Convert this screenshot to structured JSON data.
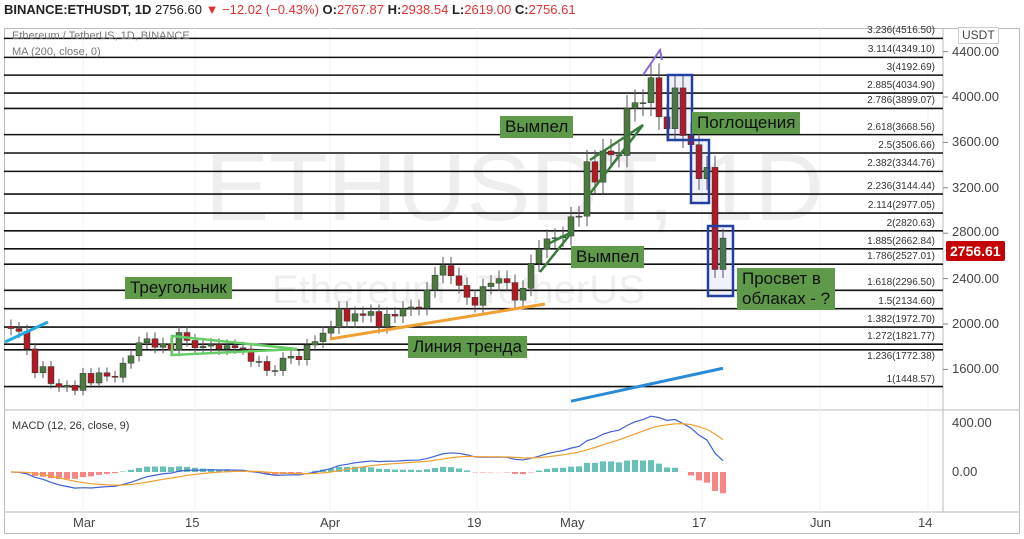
{
  "header": {
    "symbol": "BINANCE:ETHUSDT, 1D",
    "last": "2756.60",
    "change": "▼ −12.02 (−0.43%)",
    "o_label": "O:",
    "o": "2767.87",
    "h_label": "H:",
    "h": "2938.54",
    "l_label": "L:",
    "l": "2619.00",
    "c_label": "C:",
    "c": "2756.61"
  },
  "legend": {
    "title": "Ethereum / TetherUS, 1D, BINANCE",
    "ma": "MA (200, close, 0)",
    "macd": "MACD (12, 26, close, 9)"
  },
  "watermark": {
    "symbol": "ETHUSDT, 1D",
    "name": "Ethereum / TetherUS"
  },
  "price_axis": {
    "currency": "USDT",
    "ticks": [
      "4400.00",
      "4000.00",
      "3600.00",
      "3200.00",
      "2800.00",
      "2400.00",
      "2000.00",
      "1600.00"
    ],
    "last_price": "2756.61",
    "last_color": "#c40000"
  },
  "macd_axis": {
    "ticks": [
      "400.00",
      "0.00"
    ]
  },
  "time_axis": {
    "ticks": [
      "Mar",
      "15",
      "Apr",
      "19",
      "May",
      "17",
      "Jun",
      "14"
    ]
  },
  "fib_levels": [
    "3.236(4516.50)",
    "3.114(4349.10)",
    "3(4192.69)",
    "2.885(4034.90)",
    "2.786(3899.07)",
    "2.618(3668.56)",
    "2.5(3506.66)",
    "2.382(3344.76)",
    "2.236(3144.44)",
    "2.114(2977.05)",
    "2(2820.63)",
    "1.885(2662.84)",
    "1.786(2527.01)",
    "1.618(2296.50)",
    "1.5(2134.60)",
    "1.382(1972.70)",
    "1.272(1821.77)",
    "1.236(1772.38)",
    "1(1448.57)"
  ],
  "annotations": {
    "pennant1": "Вымпел",
    "engulfing": "Поглощения",
    "pennant2": "Вымпел",
    "triangle": "Треугольник",
    "trendline": "Линия тренда",
    "gap1": "Просвет в",
    "gap2": "облаках - ?"
  },
  "colors": {
    "up": "#4a7a40",
    "down": "#b01a24",
    "ma": "#2a8ad6",
    "macd": "#4060d0",
    "signal": "#f0a030"
  },
  "chart_data": {
    "type": "candlestick",
    "start": "Feb 20",
    "closes": [
      1960,
      1935,
      1780,
      1570,
      1625,
      1475,
      1445,
      1460,
      1415,
      1565,
      1480,
      1570,
      1540,
      1530,
      1655,
      1720,
      1835,
      1870,
      1795,
      1825,
      1770,
      1925,
      1855,
      1790,
      1805,
      1820,
      1780,
      1810,
      1790,
      1780,
      1670,
      1670,
      1590,
      1590,
      1700,
      1715,
      1685,
      1815,
      1845,
      1920,
      1970,
      2135,
      2025,
      2090,
      2075,
      2110,
      1975,
      2085,
      2070,
      2135,
      2150,
      2140,
      2300,
      2430,
      2515,
      2425,
      2340,
      2235,
      2165,
      2330,
      2360,
      2400,
      2365,
      2210,
      2315,
      2535,
      2660,
      2750,
      2760,
      2775,
      2945,
      2950,
      3430,
      3250,
      3525,
      3490,
      3485,
      3900,
      3950,
      3950,
      4170,
      3825,
      3720,
      4080,
      3660,
      3580,
      3280,
      3380,
      2480,
      2757
    ],
    "ma200": {
      "from": [
        "May 1",
        1320
      ],
      "to": [
        "May 20",
        1610
      ]
    }
  }
}
